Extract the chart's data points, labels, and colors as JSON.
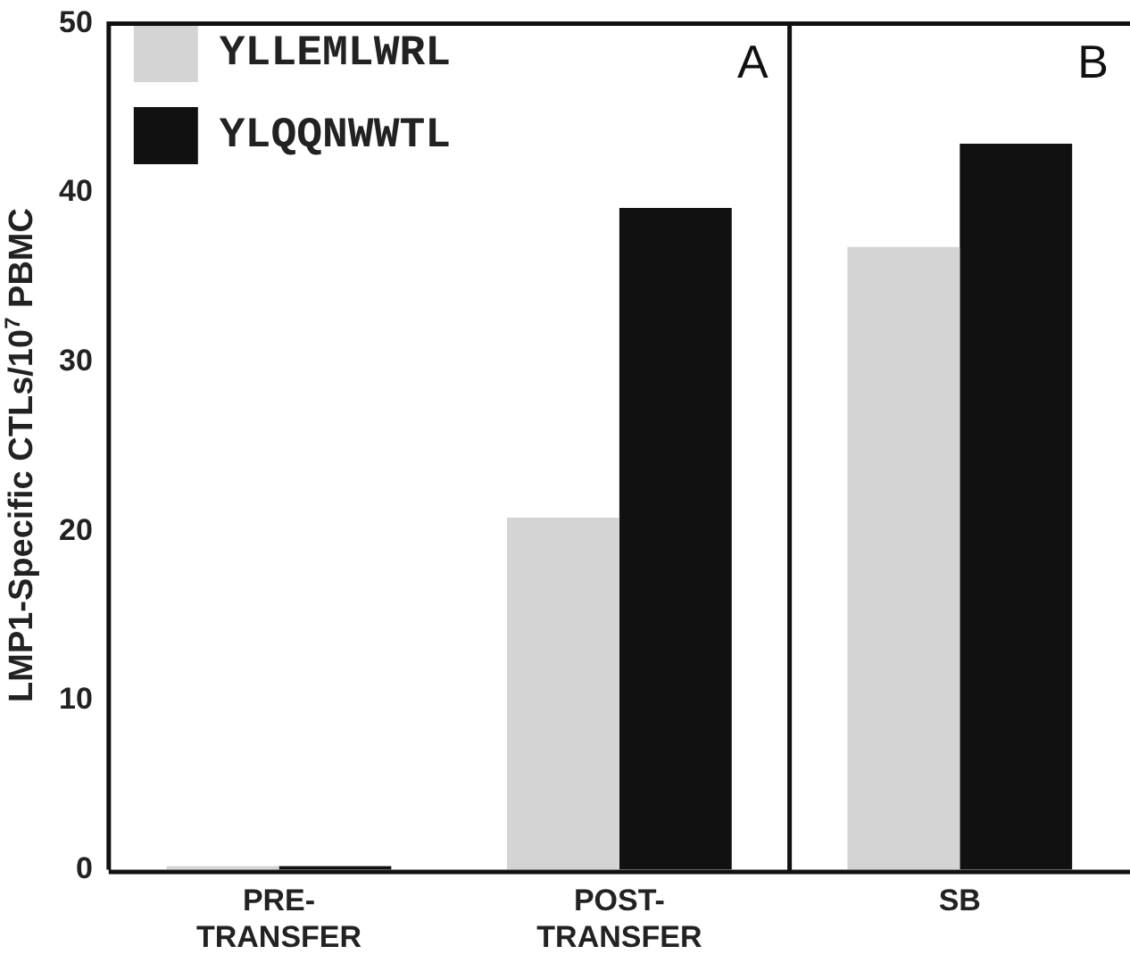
{
  "chart_data": {
    "type": "bar",
    "ylabel": "LMP1-Specific CTLs/10$^{7}$ PBMC",
    "categories": [
      "PRE-TRANSFER",
      "POST-TRANSFER",
      "SB"
    ],
    "series": [
      {
        "name": "YLLEMLWRL",
        "color": "#d4d4d4",
        "values": [
          0.2,
          20.8,
          36.8
        ]
      },
      {
        "name": "YLQQNWWTL",
        "color": "#111111",
        "values": [
          0.2,
          39.1,
          42.9
        ]
      }
    ],
    "ylim": [
      0,
      50
    ],
    "yticks": [
      0,
      10,
      20,
      30,
      40,
      50
    ],
    "annotations": [
      "A",
      "B"
    ],
    "legend": "top left",
    "grid": false
  }
}
